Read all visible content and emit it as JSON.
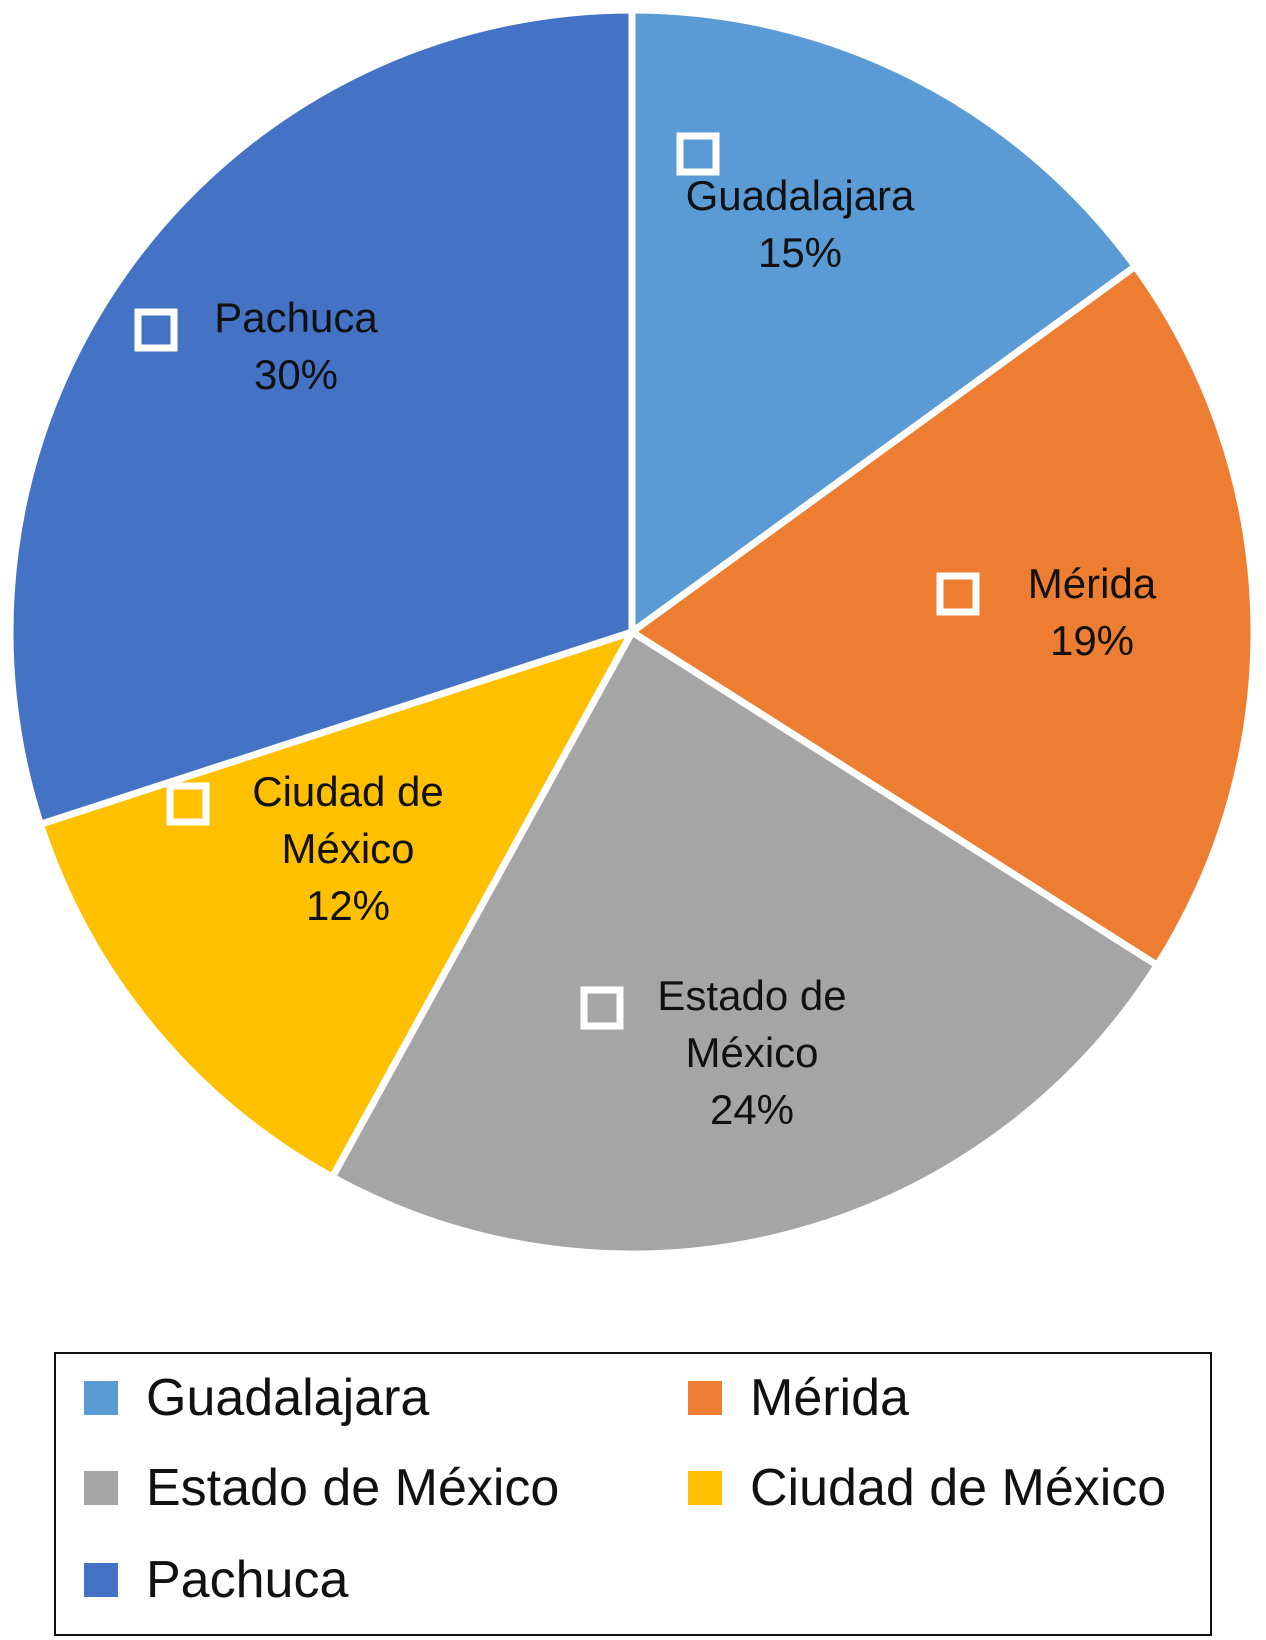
{
  "chart_data": {
    "type": "pie",
    "title": "",
    "categories": [
      "Guadalajara",
      "Mérida",
      "Estado de México",
      "Ciudad de México",
      "Pachuca"
    ],
    "values": [
      15,
      19,
      24,
      12,
      30
    ],
    "value_labels": [
      "15%",
      "19%",
      "24%",
      "12%",
      "30%"
    ],
    "label_lines": [
      [
        "Guadalajara",
        "15%"
      ],
      [
        "Mérida",
        "19%"
      ],
      [
        "Estado de",
        "México",
        "24%"
      ],
      [
        "Ciudad de",
        "México",
        "12%"
      ],
      [
        "Pachuca",
        "30%"
      ]
    ],
    "colors": [
      "#5b9bd5",
      "#ed7d31",
      "#a5a5a5",
      "#ffc000",
      "#4472c4"
    ],
    "start_angle_deg": 0,
    "direction": "clockwise",
    "legend_position": "bottom"
  },
  "legend": {
    "items": [
      {
        "label": "Guadalajara",
        "color": "#5b9bd5"
      },
      {
        "label": "Mérida",
        "color": "#ed7d31"
      },
      {
        "label": "Estado de México",
        "color": "#a5a5a5"
      },
      {
        "label": "Ciudad de México",
        "color": "#ffc000"
      },
      {
        "label": "Pachuca",
        "color": "#4472c4"
      }
    ]
  }
}
